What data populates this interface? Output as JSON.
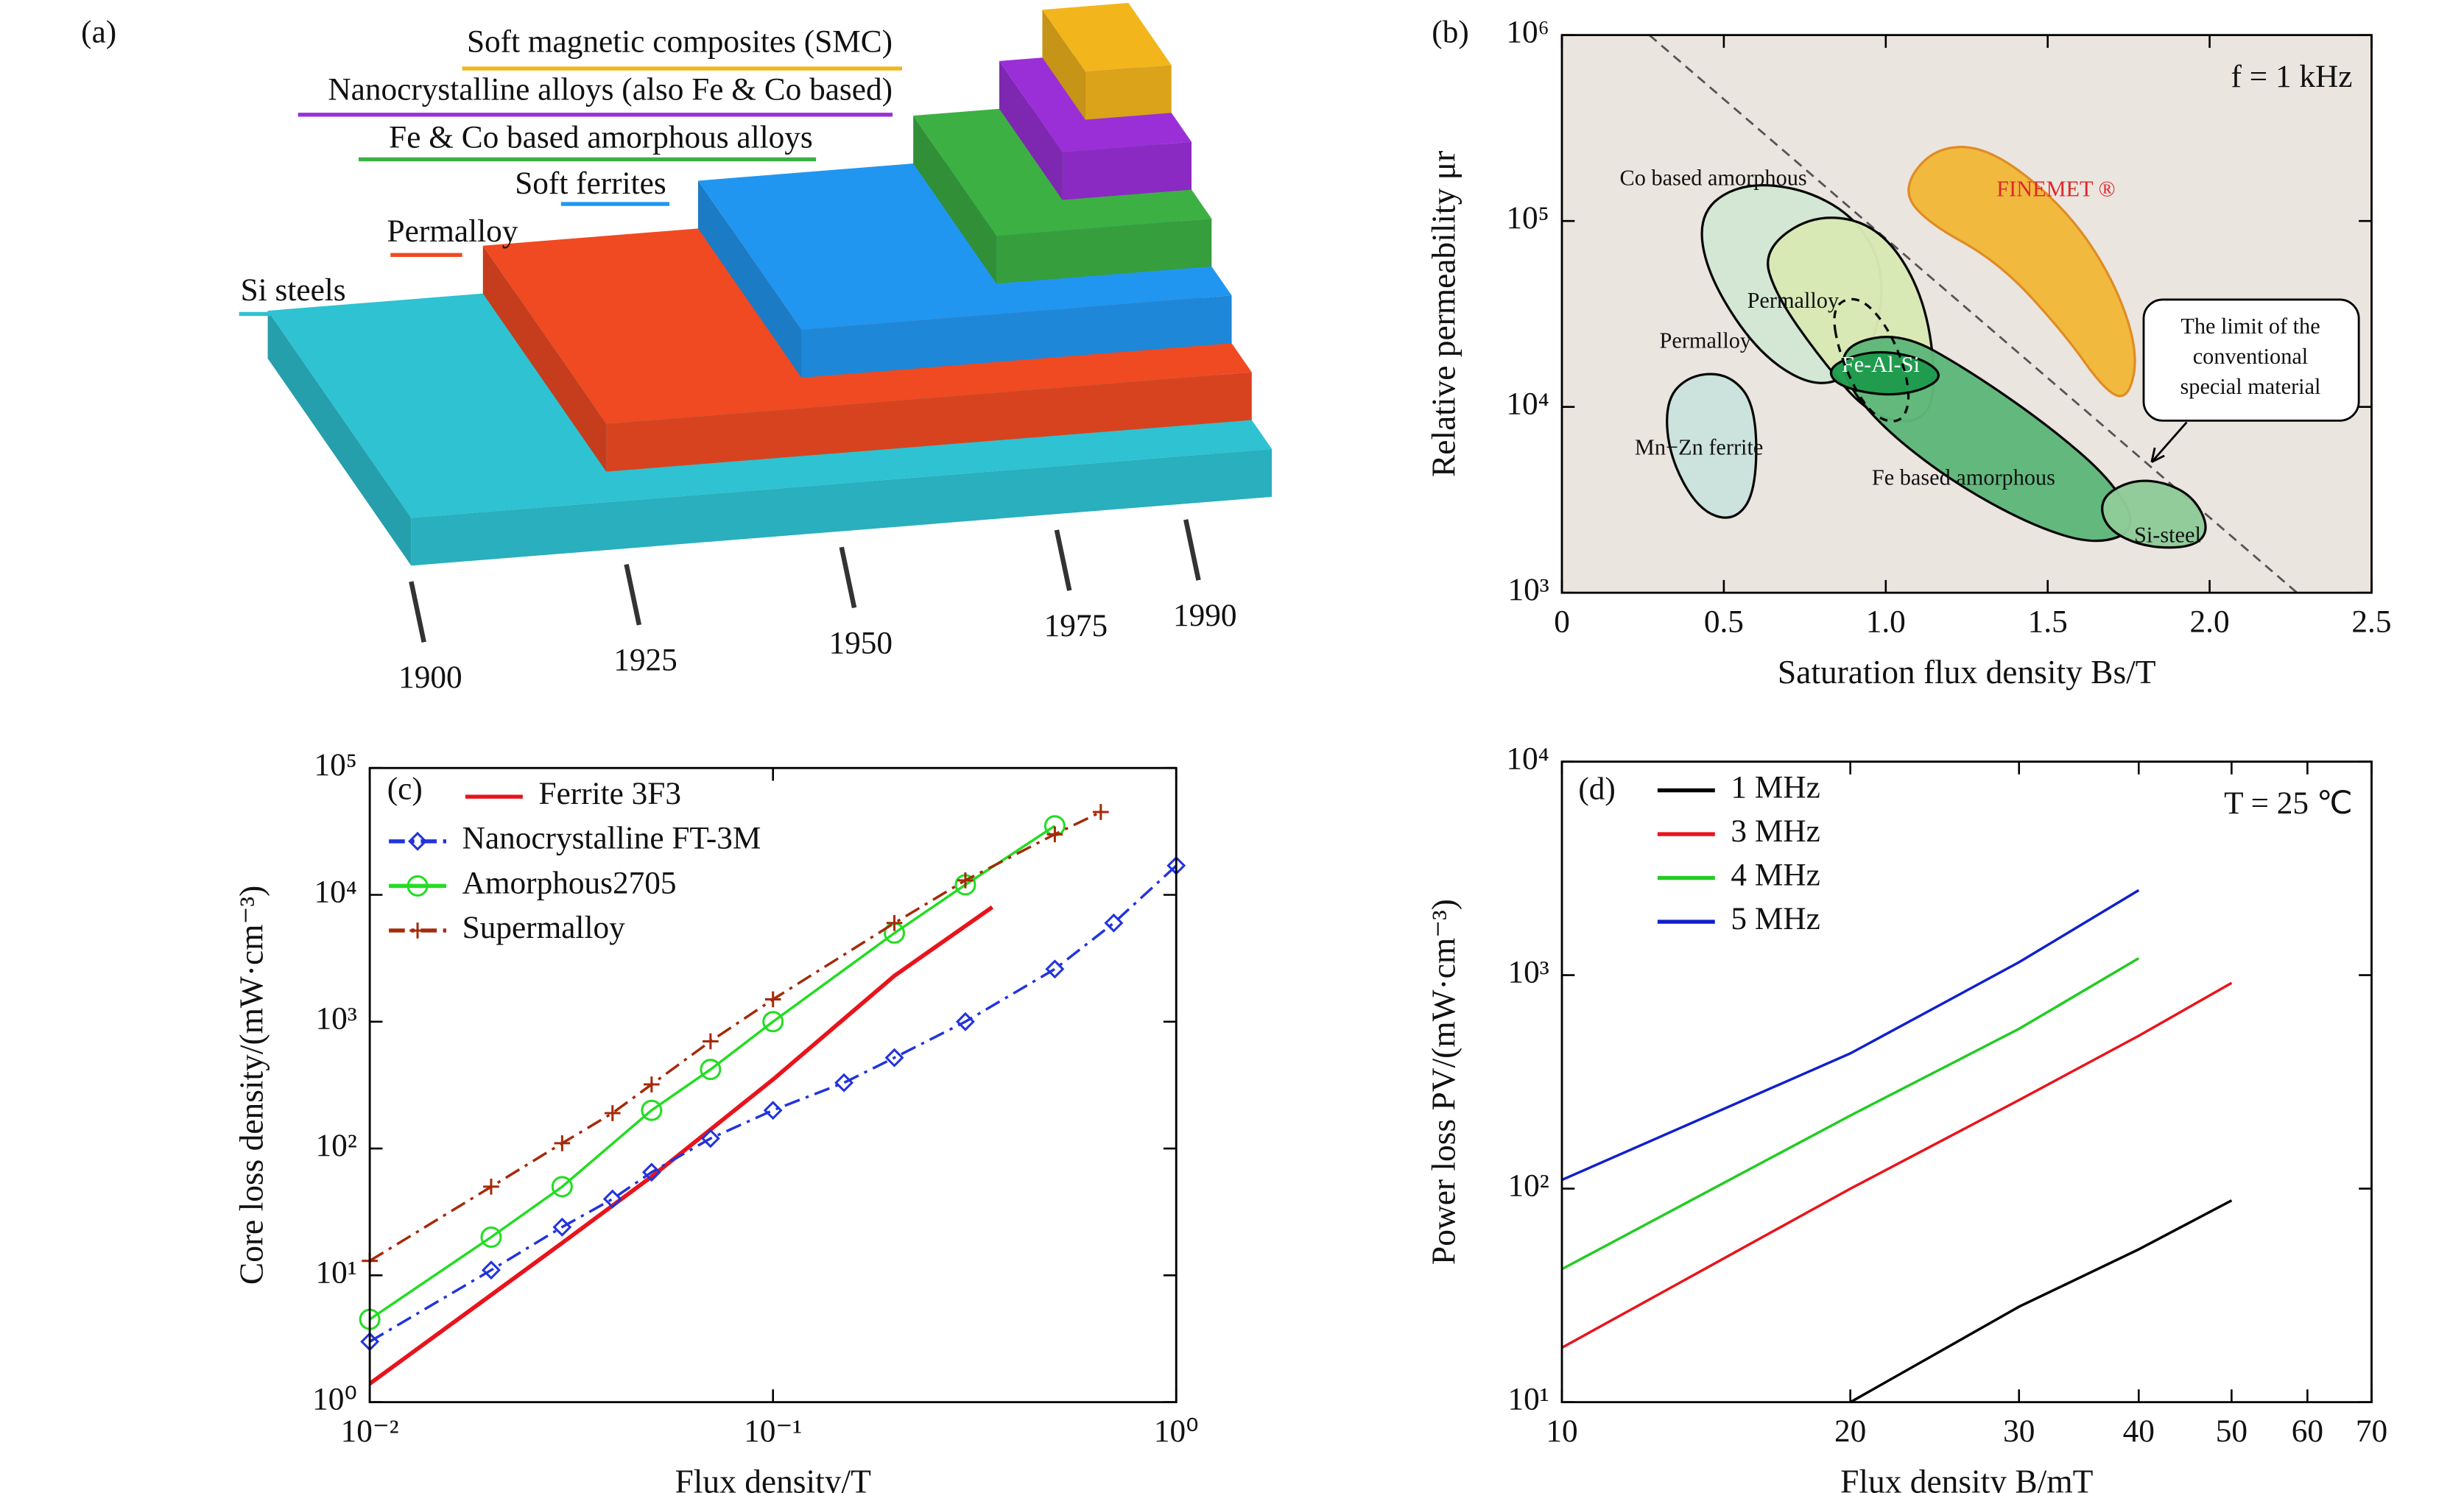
{
  "chart_data": [
    {
      "type": "staircase",
      "panel_label": "(a)",
      "series": [
        {
          "name": "Si steels",
          "color": "#2ec2d2",
          "start": 1900
        },
        {
          "name": "Permalloy",
          "color": "#f04a22",
          "start": 1925
        },
        {
          "name": "Soft ferrites",
          "color": "#2196f0",
          "start": 1950
        },
        {
          "name": "Fe & Co based amorphous alloys",
          "color": "#3cb043",
          "start": 1975
        },
        {
          "name": "Nanocrystalline alloys (also Fe & Co based)",
          "color": "#9a2fd8",
          "start": 1985
        },
        {
          "name": "Soft magnetic composites (SMC)",
          "color": "#f2b51c",
          "start": 1990
        }
      ],
      "xlim": [
        1900,
        2000
      ],
      "xticks": [
        1900,
        1925,
        1950,
        1975,
        1990
      ]
    },
    {
      "type": "region",
      "panel_label": "(b)",
      "annotation": "f = 1 kHz",
      "xlabel": "Saturation flux density Bs/T",
      "ylabel": "Relative permeability μr",
      "xlim": [
        0,
        2.5
      ],
      "ylim": [
        1000,
        1000000
      ],
      "ylog": true,
      "background": "#ebe5df",
      "xticks": [
        0,
        0.5,
        {
          "value": 1,
          "label": "1.0"
        },
        1.5,
        {
          "value": 2,
          "label": "2.0"
        },
        2.5
      ],
      "yticks": [
        {
          "value": 1000,
          "label": "10³"
        },
        {
          "value": 10000,
          "label": "10⁴"
        },
        {
          "value": 100000,
          "label": "10⁵"
        },
        {
          "value": 1000000,
          "label": "10⁶"
        }
      ],
      "regions": [
        {
          "name": "Co based amorphous",
          "color": "#d3e8d4",
          "x": [
            0.42,
            0.55,
            0.75,
            0.92,
            1.0,
            0.96,
            0.82,
            0.62,
            0.45
          ],
          "y": [
            110000,
            160000,
            150000,
            100000,
            50000,
            20000,
            12000,
            18000,
            50000
          ]
        },
        {
          "name": "Permalloy",
          "color": "#d9eab5",
          "x": [
            0.62,
            0.78,
            0.98,
            1.12,
            1.16,
            1.1,
            0.95,
            0.8,
            0.66
          ],
          "y": [
            70000,
            110000,
            95000,
            40000,
            12000,
            8000,
            9000,
            18000,
            40000
          ]
        },
        {
          "name": "Fe based amorphous",
          "color": "#5fb87a",
          "x": [
            0.88,
            1.05,
            1.25,
            1.5,
            1.7,
            1.78,
            1.65,
            1.45,
            1.2,
            0.98,
            0.86
          ],
          "y": [
            22000,
            25000,
            16000,
            8000,
            4000,
            2200,
            1800,
            2300,
            4000,
            8000,
            15000
          ]
        },
        {
          "name": "Fe-Al-Si",
          "color": "#1f9c4e",
          "label_color": "#ffffff",
          "x": [
            0.82,
            0.9,
            1.0,
            1.12,
            1.18,
            1.1,
            0.98,
            0.85
          ],
          "y": [
            16000,
            19000,
            20000,
            18000,
            14500,
            12000,
            11500,
            13000
          ]
        },
        {
          "name": "Permalloy",
          "dashed": true,
          "x": [
            0.83,
            0.92,
            1.02,
            1.08,
            1.05,
            0.95,
            0.86
          ],
          "y": [
            35000,
            40000,
            25000,
            12000,
            8000,
            9000,
            18000
          ]
        },
        {
          "name": "Mn−Zn ferrite",
          "color": "#cce3dd",
          "x": [
            0.32,
            0.4,
            0.52,
            0.6,
            0.6,
            0.53,
            0.42,
            0.33
          ],
          "y": [
            11000,
            15000,
            15000,
            10000,
            3500,
            2400,
            2800,
            5500
          ]
        },
        {
          "name": "Si-steel",
          "color": "#8fcc98",
          "x": [
            1.66,
            1.75,
            1.85,
            1.95,
            2.0,
            1.95,
            1.8,
            1.68
          ],
          "y": [
            3200,
            4000,
            4000,
            3300,
            2200,
            1750,
            1750,
            2200
          ]
        },
        {
          "name": "FINEMET ®",
          "color": "#f2b93a",
          "label_color": "#e0282a",
          "x": [
            1.05,
            1.15,
            1.32,
            1.55,
            1.7,
            1.78,
            1.75,
            1.68,
            1.55,
            1.35,
            1.12
          ],
          "y": [
            150000,
            250000,
            250000,
            120000,
            50000,
            20000,
            11000,
            12000,
            25000,
            60000,
            100000
          ]
        }
      ],
      "limit": {
        "label": [
          "The limit of the",
          "conventional",
          "special material"
        ],
        "x": [
          0.27,
          2.27
        ],
        "y": [
          1000000,
          1000
        ]
      }
    },
    {
      "type": "line",
      "panel_label": "(c)",
      "xlabel": "Flux density/T",
      "ylabel": "Core loss density/(mW·cm⁻³)",
      "xlim": [
        0.01,
        1
      ],
      "ylim": [
        1,
        100000
      ],
      "xlog": true,
      "ylog": true,
      "legend": "upper left",
      "xticks": [
        {
          "value": 0.01,
          "label": "10⁻²"
        },
        {
          "value": 0.1,
          "label": "10⁻¹"
        },
        {
          "value": 1,
          "label": "10⁰"
        }
      ],
      "yticks": [
        {
          "value": 1,
          "label": "10⁰"
        },
        {
          "value": 10,
          "label": "10¹"
        },
        {
          "value": 100,
          "label": "10²"
        },
        {
          "value": 1000,
          "label": "10³"
        },
        {
          "value": 10000,
          "label": "10⁴"
        },
        {
          "value": 100000,
          "label": "10⁵"
        }
      ],
      "series": [
        {
          "name": "Ferrite 3F3",
          "color": "#e8141c",
          "dash": "solid",
          "marker": "none",
          "x": [
            0.01,
            0.02,
            0.03,
            0.05,
            0.1,
            0.2,
            0.35
          ],
          "values": [
            1.4,
            7,
            18,
            60,
            350,
            2300,
            8000
          ]
        },
        {
          "name": "Nanocrystalline FT-3M",
          "color": "#2233dd",
          "dash": "dashdot",
          "marker": "diamond",
          "x": [
            0.01,
            0.02,
            0.03,
            0.04,
            0.05,
            0.07,
            0.1,
            0.15,
            0.2,
            0.3,
            0.5,
            0.7,
            1.0
          ],
          "values": [
            3,
            11,
            24,
            40,
            65,
            120,
            200,
            330,
            520,
            1000,
            2600,
            6000,
            17000
          ]
        },
        {
          "name": "Amorphous2705",
          "color": "#22dd22",
          "dash": "solid",
          "marker": "circle",
          "x": [
            0.01,
            0.02,
            0.03,
            0.05,
            0.07,
            0.1,
            0.2,
            0.3,
            0.5
          ],
          "values": [
            4.5,
            20,
            50,
            200,
            420,
            1000,
            5000,
            12000,
            35000
          ]
        },
        {
          "name": "Supermalloy",
          "color": "#a52a0a",
          "dash": "dashdot",
          "marker": "plus",
          "x": [
            0.01,
            0.02,
            0.03,
            0.04,
            0.05,
            0.07,
            0.1,
            0.2,
            0.3,
            0.5,
            0.65
          ],
          "values": [
            13,
            50,
            110,
            190,
            320,
            700,
            1500,
            6000,
            13000,
            30000,
            45000
          ]
        }
      ]
    },
    {
      "type": "line",
      "panel_label": "(d)",
      "annotation": "T = 25 ℃",
      "xlabel": "Flux density B/mT",
      "ylabel": "Power loss PV/(mW·cm⁻³)",
      "xlim": [
        10,
        70
      ],
      "ylim": [
        10,
        10000
      ],
      "xlog": true,
      "ylog": true,
      "legend": "upper left",
      "xticks": [
        10,
        20,
        30,
        40,
        50,
        60,
        70
      ],
      "yticks": [
        {
          "value": 10,
          "label": "10¹"
        },
        {
          "value": 100,
          "label": "10²"
        },
        {
          "value": 1000,
          "label": "10³"
        },
        {
          "value": 10000,
          "label": "10⁴"
        }
      ],
      "series": [
        {
          "name": "1 MHz",
          "color": "#000000",
          "dash": "solid",
          "marker": "none",
          "x": [
            20,
            30,
            40,
            50
          ],
          "values": [
            10,
            28,
            52,
            88
          ]
        },
        {
          "name": "3 MHz",
          "color": "#e8141c",
          "dash": "solid",
          "marker": "none",
          "x": [
            10,
            20,
            30,
            40,
            50
          ],
          "values": [
            18,
            100,
            260,
            520,
            920
          ]
        },
        {
          "name": "4 MHz",
          "color": "#22cc22",
          "dash": "solid",
          "marker": "none",
          "x": [
            10,
            20,
            30,
            40
          ],
          "values": [
            42,
            220,
            560,
            1200
          ]
        },
        {
          "name": "5 MHz",
          "color": "#1020cc",
          "dash": "solid",
          "marker": "none",
          "x": [
            10,
            20,
            30,
            40
          ],
          "values": [
            110,
            430,
            1150,
            2500
          ]
        }
      ]
    }
  ]
}
